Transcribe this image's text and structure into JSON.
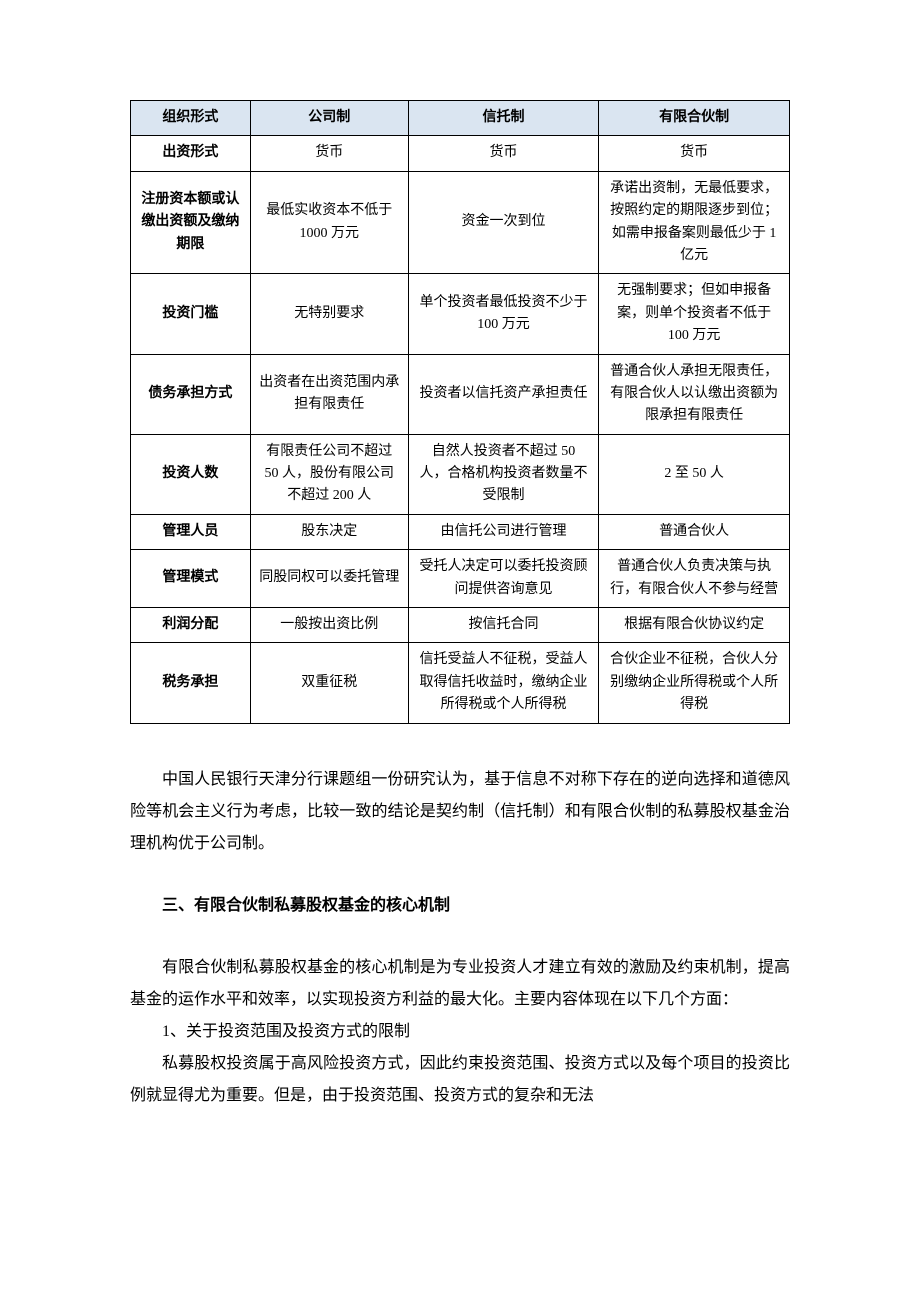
{
  "table": {
    "headers": [
      "组织形式",
      "公司制",
      "信托制",
      "有限合伙制"
    ],
    "rows": [
      {
        "label": "出资形式",
        "company": "货币",
        "trust": "货币",
        "partner": "货币"
      },
      {
        "label": "注册资本额或认缴出资额及缴纳期限",
        "company": "最低实收资本不低于 1000 万元",
        "trust": "资金一次到位",
        "partner": "承诺出资制，无最低要求，按照约定的期限逐步到位；如需申报备案则最低少于 1 亿元"
      },
      {
        "label": "投资门槛",
        "company": "无特别要求",
        "trust": "单个投资者最低投资不少于 100 万元",
        "partner": "无强制要求；但如申报备案，则单个投资者不低于 100 万元"
      },
      {
        "label": "债务承担方式",
        "company": "出资者在出资范围内承担有限责任",
        "trust": "投资者以信托资产承担责任",
        "partner": "普通合伙人承担无限责任，有限合伙人以认缴出资额为限承担有限责任"
      },
      {
        "label": "投资人数",
        "company": "有限责任公司不超过 50 人，股份有限公司不超过 200 人",
        "trust": "自然人投资者不超过 50 人，合格机构投资者数量不受限制",
        "partner": "2 至 50 人"
      },
      {
        "label": "管理人员",
        "company": "股东决定",
        "trust": "由信托公司进行管理",
        "partner": "普通合伙人"
      },
      {
        "label": "管理模式",
        "company": "同股同权可以委托管理",
        "trust": "受托人决定可以委托投资顾问提供咨询意见",
        "partner": "普通合伙人负责决策与执行，有限合伙人不参与经营"
      },
      {
        "label": "利润分配",
        "company": "一般按出资比例",
        "trust": "按信托合同",
        "partner": "根据有限合伙协议约定"
      },
      {
        "label": "税务承担",
        "company": "双重征税",
        "trust": "信托受益人不征税，受益人取得信托收益时，缴纳企业所得税或个人所得税",
        "partner": "合伙企业不征税，合伙人分别缴纳企业所得税或个人所得税"
      }
    ]
  },
  "para1": "中国人民银行天津分行课题组一份研究认为，基于信息不对称下存在的逆向选择和道德风险等机会主义行为考虑，比较一致的结论是契约制（信托制）和有限合伙制的私募股权基金治理机构优于公司制。",
  "heading": "三、有限合伙制私募股权基金的核心机制",
  "para2": "有限合伙制私募股权基金的核心机制是为专业投资人才建立有效的激励及约束机制，提高基金的运作水平和效率，以实现投资方利益的最大化。主要内容体现在以下几个方面：",
  "item1": "1、关于投资范围及投资方式的限制",
  "para3": "私募股权投资属于高风险投资方式，因此约束投资范围、投资方式以及每个项目的投资比例就显得尤为重要。但是，由于投资范围、投资方式的复杂和无法"
}
